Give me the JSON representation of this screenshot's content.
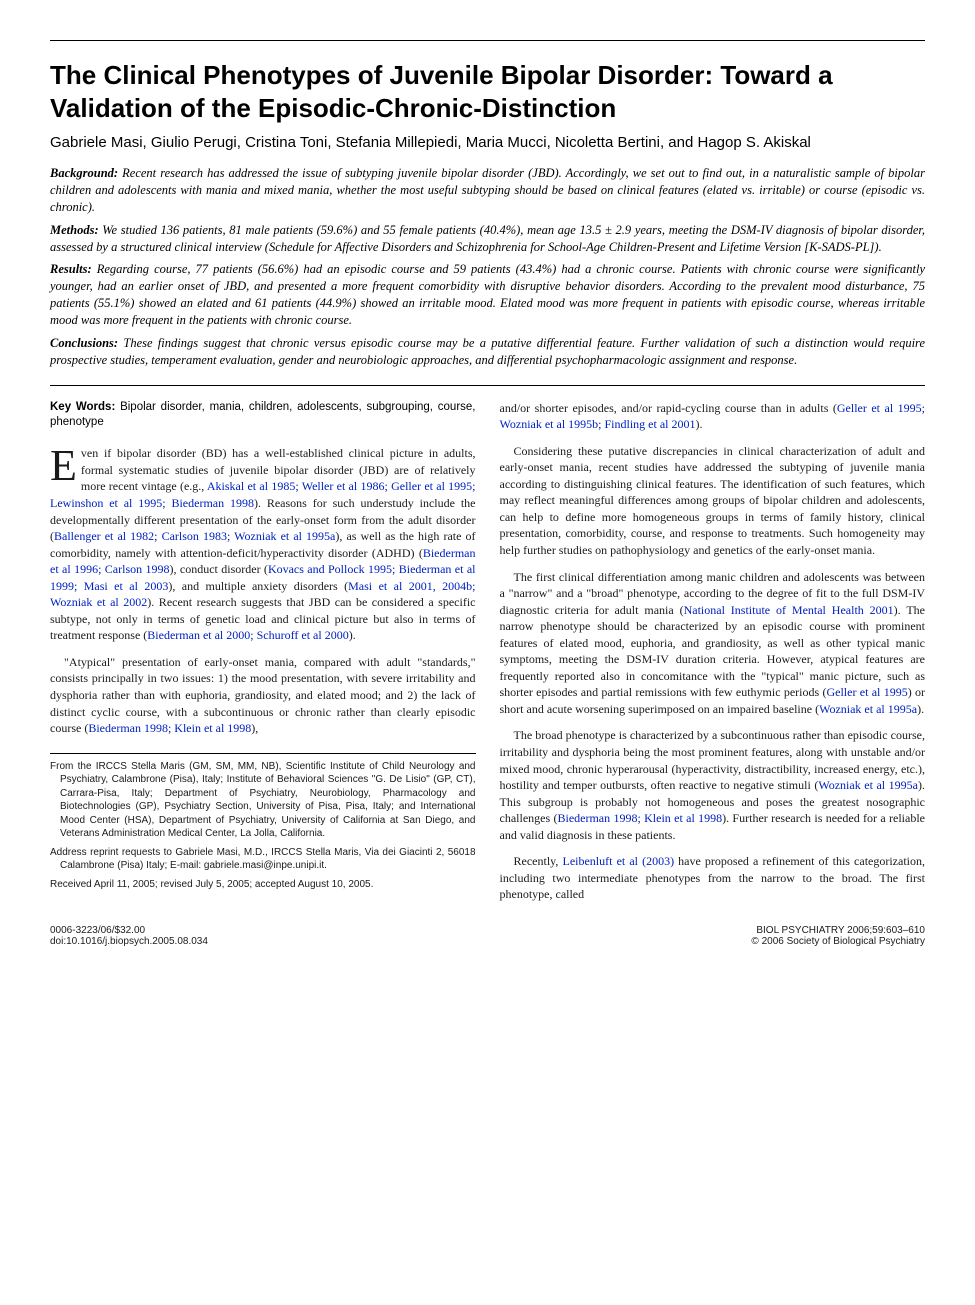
{
  "title": "The Clinical Phenotypes of Juvenile Bipolar Disorder: Toward a Validation of the Episodic-Chronic-Distinction",
  "authors": "Gabriele Masi, Giulio Perugi, Cristina Toni, Stefania Millepiedi, Maria Mucci, Nicoletta Bertini, and Hagop S. Akiskal",
  "abstract": {
    "background_label": "Background:",
    "background": " Recent research has addressed the issue of subtyping juvenile bipolar disorder (JBD). Accordingly, we set out to find out, in a naturalistic sample of bipolar children and adolescents with mania and mixed mania, whether the most useful subtyping should be based on clinical features (elated vs. irritable) or course (episodic vs. chronic).",
    "methods_label": "Methods:",
    "methods": " We studied 136 patients, 81 male patients (59.6%) and 55 female patients (40.4%), mean age 13.5 ± 2.9 years, meeting the DSM-IV diagnosis of bipolar disorder, assessed by a structured clinical interview (Schedule for Affective Disorders and Schizophrenia for School-Age Children-Present and Lifetime Version [K-SADS-PL]).",
    "results_label": "Results:",
    "results": " Regarding course, 77 patients (56.6%) had an episodic course and 59 patients (43.4%) had a chronic course. Patients with chronic course were significantly younger, had an earlier onset of JBD, and presented a more frequent comorbidity with disruptive behavior disorders. According to the prevalent mood disturbance, 75 patients (55.1%) showed an elated and 61 patients (44.9%) showed an irritable mood. Elated mood was more frequent in patients with episodic course, whereas irritable mood was more frequent in the patients with chronic course.",
    "conclusions_label": "Conclusions:",
    "conclusions": " These findings suggest that chronic versus episodic course may be a putative differential feature. Further validation of such a distinction would require prospective studies, temperament evaluation, gender and neurobiologic approaches, and differential psychopharmacologic assignment and response."
  },
  "keywords_label": "Key Words:",
  "keywords": " Bipolar disorder, mania, children, adolescents, subgrouping, course, phenotype",
  "body": {
    "col1": {
      "dropcap": "E",
      "p1a": "ven if bipolar disorder (BD) has a well-established clinical picture in adults, formal systematic studies of juvenile bipolar disorder (JBD) are of relatively more recent vintage (e.g., ",
      "p1cite1": "Akiskal et al 1985; Weller et al 1986; Geller et al 1995; Lewinshon et al 1995; Biederman 1998",
      "p1b": "). Reasons for such understudy include the developmentally different presentation of the early-onset form from the adult disorder (",
      "p1cite2": "Ballenger et al 1982; Carlson 1983; Wozniak et al 1995a",
      "p1c": "), as well as the high rate of comorbidity, namely with attention-deficit/hyperactivity disorder (ADHD) (",
      "p1cite3": "Biederman et al 1996; Carlson 1998",
      "p1d": "), conduct disorder (",
      "p1cite4": "Kovacs and Pollock 1995; Biederman et al 1999; Masi et al 2003",
      "p1e": "), and multiple anxiety disorders (",
      "p1cite5": "Masi et al 2001, 2004b; Wozniak et al 2002",
      "p1f": "). Recent research suggests that JBD can be considered a specific subtype, not only in terms of genetic load and clinical picture but also in terms of treatment response (",
      "p1cite6": "Biederman et al 2000; Schuroff et al 2000",
      "p1g": ").",
      "p2a": "\"Atypical\" presentation of early-onset mania, compared with adult \"standards,\" consists principally in two issues: 1) the mood presentation, with severe irritability and dysphoria rather than with euphoria, grandiosity, and elated mood; and 2) the lack of distinct cyclic course, with a subcontinuous or chronic rather than clearly episodic course (",
      "p2cite1": "Biederman 1998; Klein et al 1998",
      "p2b": "),"
    },
    "col2": {
      "p1a": "and/or shorter episodes, and/or rapid-cycling course than in adults (",
      "p1cite1": "Geller et al 1995; Wozniak et al 1995b; Findling et al 2001",
      "p1b": ").",
      "p2": "Considering these putative discrepancies in clinical characterization of adult and early-onset mania, recent studies have addressed the subtyping of juvenile mania according to distinguishing clinical features. The identification of such features, which may reflect meaningful differences among groups of bipolar children and adolescents, can help to define more homogeneous groups in terms of family history, clinical presentation, comorbidity, course, and response to treatments. Such homogeneity may help further studies on pathophysiology and genetics of the early-onset mania.",
      "p3a": "The first clinical differentiation among manic children and adolescents was between a \"narrow\" and a \"broad\" phenotype, according to the degree of fit to the full DSM-IV diagnostic criteria for adult mania (",
      "p3cite1": "National Institute of Mental Health 2001",
      "p3b": "). The narrow phenotype should be characterized by an episodic course with prominent features of elated mood, euphoria, and grandiosity, as well as other typical manic symptoms, meeting the DSM-IV duration criteria. However, atypical features are frequently reported also in concomitance with the \"typical\" manic picture, such as shorter episodes and partial remissions with few euthymic periods (",
      "p3cite2": "Geller et al 1995",
      "p3c": ") or short and acute worsening superimposed on an impaired baseline (",
      "p3cite3": "Wozniak et al 1995a",
      "p3d": ").",
      "p4a": "The broad phenotype is characterized by a subcontinuous rather than episodic course, irritability and dysphoria being the most prominent features, along with unstable and/or mixed mood, chronic hyperarousal (hyperactivity, distractibility, increased energy, etc.), hostility and temper outbursts, often reactive to negative stimuli (",
      "p4cite1": "Wozniak et al 1995a",
      "p4b": "). This subgroup is probably not homogeneous and poses the greatest nosographic challenges (",
      "p4cite2": "Biederman 1998; Klein et al 1998",
      "p4c": "). Further research is needed for a reliable and valid diagnosis in these patients.",
      "p5a": "Recently, ",
      "p5cite1": "Leibenluft et al (2003)",
      "p5b": " have proposed a refinement of this categorization, including two intermediate phenotypes from the narrow to the broad. The first phenotype, called"
    }
  },
  "footnotes": {
    "affil": "From the IRCCS Stella Maris (GM, SM, MM, NB), Scientific Institute of Child Neurology and Psychiatry, Calambrone (Pisa), Italy; Institute of Behavioral Sciences \"G. De Lisio\" (GP, CT), Carrara-Pisa, Italy; Department of Psychiatry, Neurobiology, Pharmacology and Biotechnologies (GP), Psychiatry Section, University of Pisa, Pisa, Italy; and International Mood Center (HSA), Department of Psychiatry, University of California at San Diego, and Veterans Administration Medical Center, La Jolla, California.",
    "reprint": "Address reprint requests to Gabriele Masi, M.D., IRCCS Stella Maris, Via dei Giacinti 2, 56018 Calambrone (Pisa) Italy; E-mail: gabriele.masi@inpe.unipi.it.",
    "received": "Received April 11, 2005; revised July 5, 2005; accepted August 10, 2005."
  },
  "footer": {
    "left1": "0006-3223/06/$32.00",
    "left2": "doi:10.1016/j.biopsych.2005.08.034",
    "right1": "BIOL PSYCHIATRY 2006;59:603–610",
    "right2": "© 2006 Society of Biological Psychiatry"
  },
  "colors": {
    "citation": "#0020c0",
    "text": "#1a1a1a",
    "background": "#ffffff"
  }
}
